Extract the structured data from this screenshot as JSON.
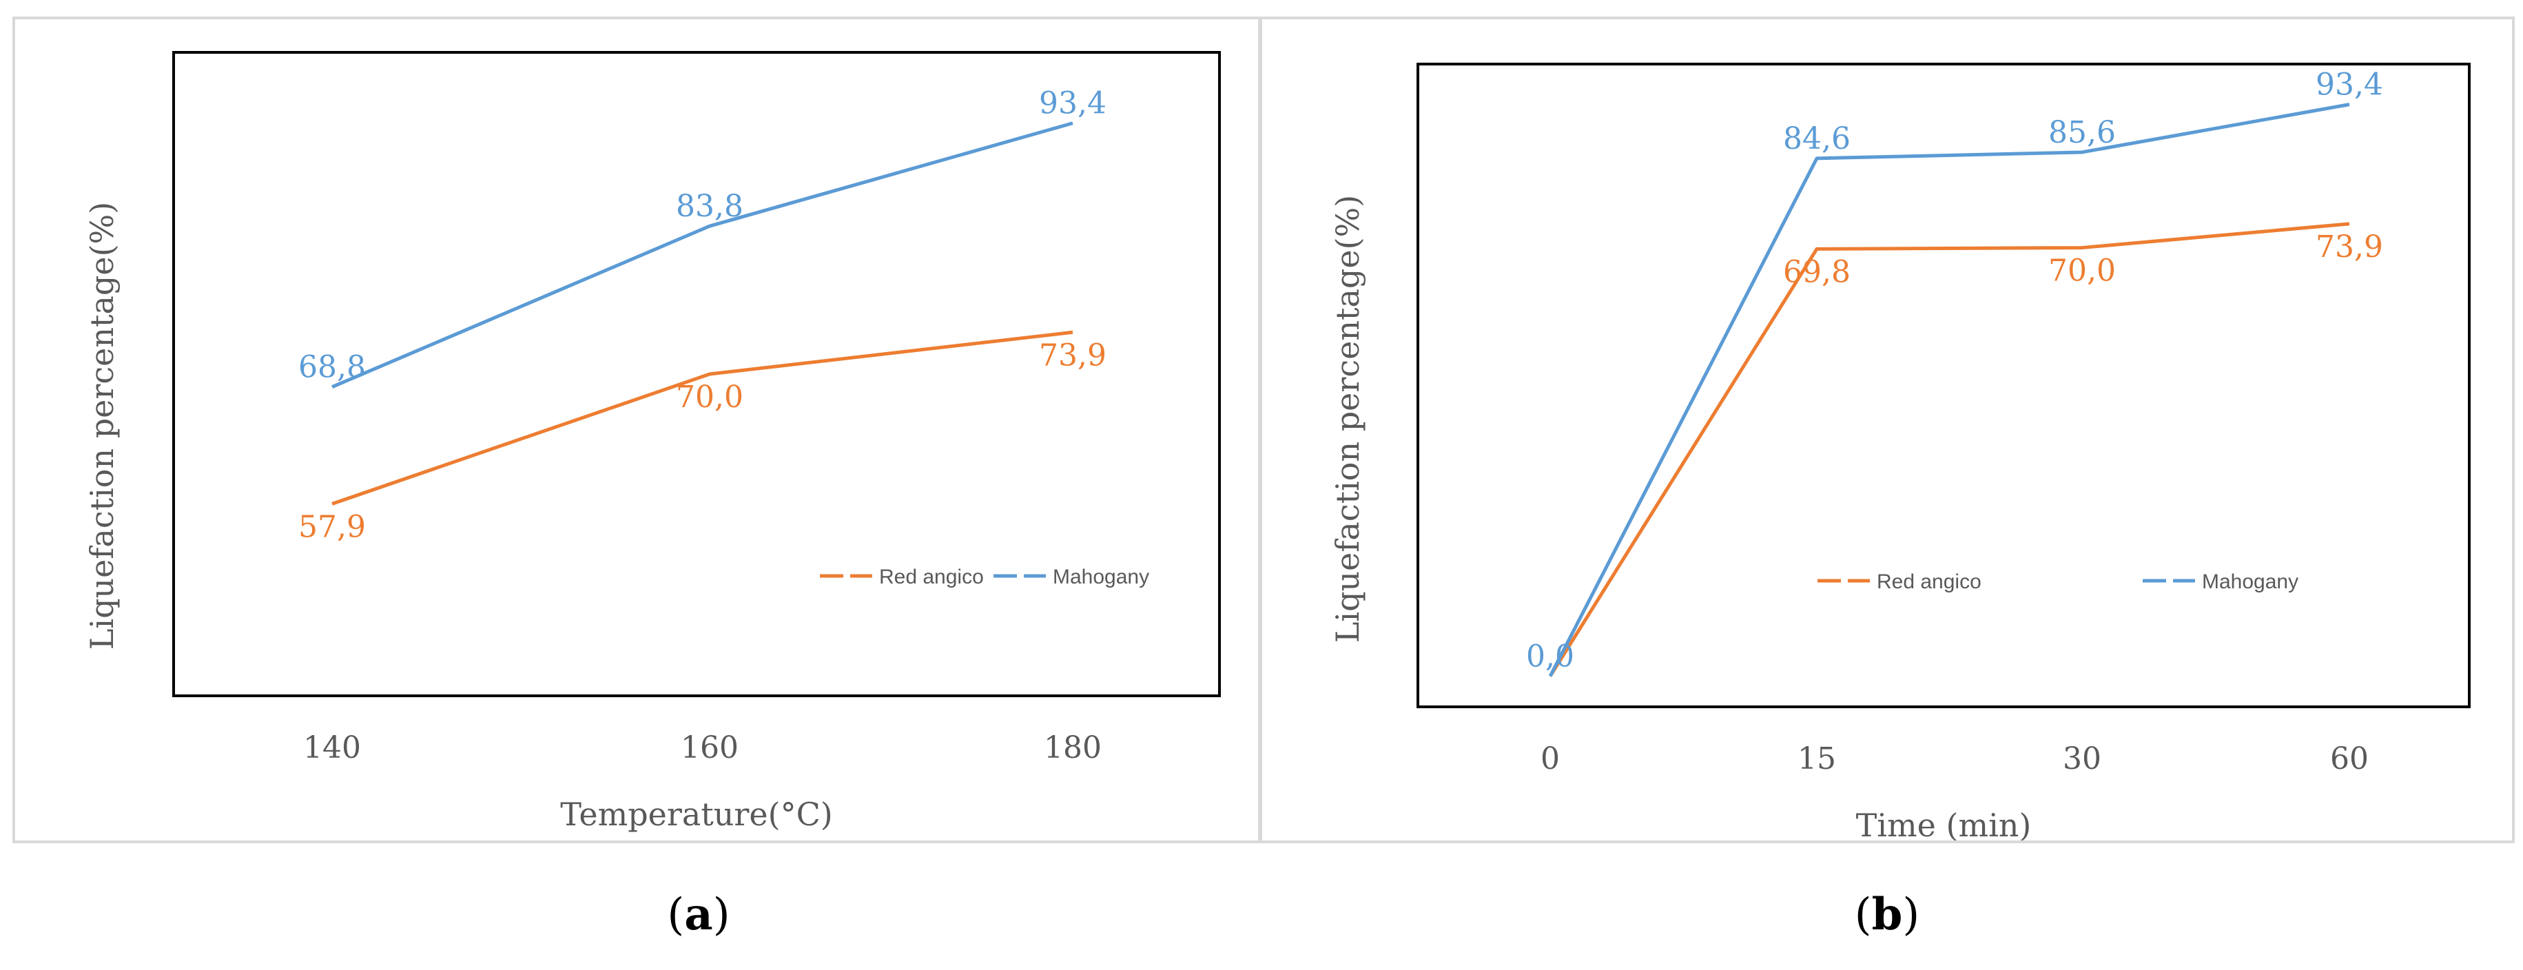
{
  "colors": {
    "red_angico": "#ED7D31",
    "mahogany": "#5B9BD5",
    "axis": "#000000",
    "tick_text": "#595959",
    "legend_text": "#595959"
  },
  "captions": [
    {
      "open": "(",
      "letter": "a",
      "close": ")"
    },
    {
      "open": "(",
      "letter": "b",
      "close": ")"
    }
  ],
  "chart_data": [
    {
      "type": "line",
      "title": "",
      "xlabel": "Temperature(°C)",
      "ylabel": "Liquefaction percentage(%)",
      "categories": [
        "140",
        "160",
        "180"
      ],
      "ylim": [
        40,
        100
      ],
      "grid": false,
      "legend_position": "bottom-right",
      "series": [
        {
          "name": "Red angico",
          "color": "#ED7D31",
          "values": [
            57.9,
            70.0,
            73.9
          ],
          "labels": [
            "57,9",
            "70,0",
            "73,9"
          ]
        },
        {
          "name": "Mahogany",
          "color": "#5B9BD5",
          "values": [
            68.8,
            83.8,
            93.4
          ],
          "labels": [
            "68,8",
            "83,8",
            "93,4"
          ]
        }
      ]
    },
    {
      "type": "line",
      "title": "",
      "xlabel": "Time (min)",
      "ylabel": "Liquefaction percentage(%)",
      "categories": [
        "0",
        "15",
        "30",
        "60"
      ],
      "ylim": [
        -5,
        100
      ],
      "grid": false,
      "legend_position": "bottom-center",
      "series": [
        {
          "name": "Red angico",
          "color": "#ED7D31",
          "values": [
            0.0,
            69.8,
            70.0,
            73.9
          ],
          "labels": [
            "",
            "69,8",
            "70,0",
            "73,9"
          ]
        },
        {
          "name": "Mahogany",
          "color": "#5B9BD5",
          "values": [
            0.0,
            84.6,
            85.6,
            93.4
          ],
          "labels": [
            "0,0",
            "84,6",
            "85,6",
            "93,4"
          ]
        }
      ]
    }
  ]
}
